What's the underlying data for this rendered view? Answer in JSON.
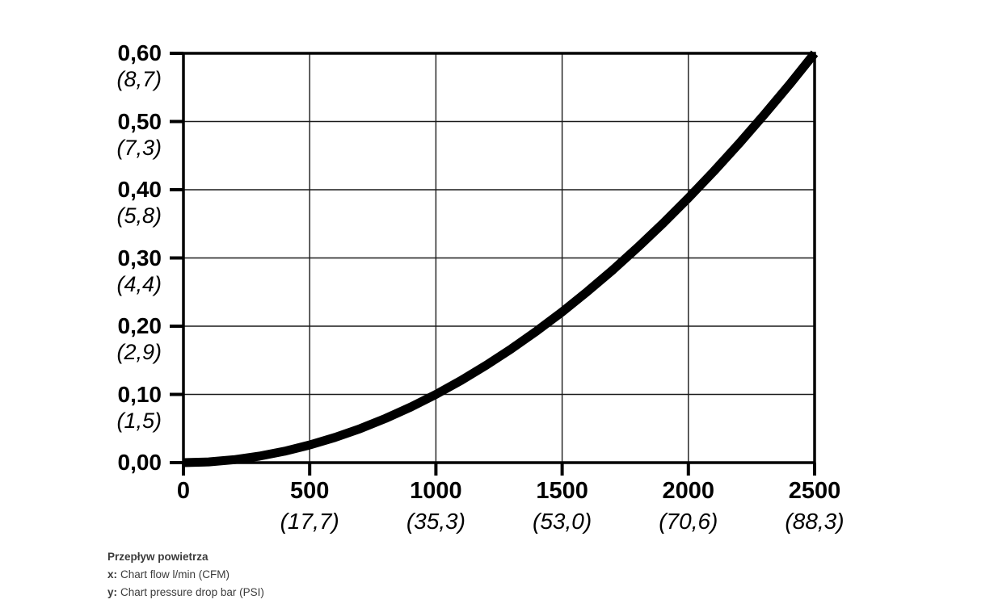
{
  "colors": {
    "background": "#ffffff",
    "axis": "#000000",
    "grid": "#1a1a1a",
    "curve": "#000000",
    "caption_text": "#3b3b3b"
  },
  "chart_data": {
    "type": "line",
    "grid": true,
    "legend": "none",
    "title": "Przepływ powietrza",
    "xlabel_prefix": "x:",
    "xlabel": "Chart flow l/min (CFM)",
    "ylabel_prefix": "y:",
    "ylabel": "Chart pressure drop bar (PSI)",
    "x_axis": {
      "range": [
        0,
        2500
      ],
      "ticks": [
        {
          "value": 0,
          "label": "0",
          "sublabel": ""
        },
        {
          "value": 500,
          "label": "500",
          "sublabel": "(17,7)"
        },
        {
          "value": 1000,
          "label": "1000",
          "sublabel": "(35,3)"
        },
        {
          "value": 1500,
          "label": "1500",
          "sublabel": "(53,0)"
        },
        {
          "value": 2000,
          "label": "2000",
          "sublabel": "(70,6)"
        },
        {
          "value": 2500,
          "label": "2500",
          "sublabel": "(88,3)"
        }
      ]
    },
    "y_axis": {
      "range": [
        0,
        0.6
      ],
      "ticks": [
        {
          "value": 0.6,
          "label": "0,60",
          "sublabel": "(8,7)"
        },
        {
          "value": 0.5,
          "label": "0,50",
          "sublabel": "(7,3)"
        },
        {
          "value": 0.4,
          "label": "0,40",
          "sublabel": "(5,8)"
        },
        {
          "value": 0.3,
          "label": "0,30",
          "sublabel": "(4,4)"
        },
        {
          "value": 0.2,
          "label": "0,20",
          "sublabel": "(2,9)"
        },
        {
          "value": 0.1,
          "label": "0,10",
          "sublabel": "(1,5)"
        },
        {
          "value": 0.0,
          "label": "0,00",
          "sublabel": ""
        }
      ]
    },
    "series": [
      {
        "points": [
          [
            0,
            0
          ],
          [
            100,
            0.0011
          ],
          [
            200,
            0.0043
          ],
          [
            300,
            0.0095
          ],
          [
            400,
            0.0167
          ],
          [
            500,
            0.0259
          ],
          [
            600,
            0.0369
          ],
          [
            700,
            0.0498
          ],
          [
            800,
            0.0647
          ],
          [
            900,
            0.0814
          ],
          [
            1000,
            0.1
          ],
          [
            1100,
            0.1205
          ],
          [
            1200,
            0.1429
          ],
          [
            1300,
            0.1671
          ],
          [
            1400,
            0.1932
          ],
          [
            1500,
            0.221
          ],
          [
            1600,
            0.2508
          ],
          [
            1700,
            0.2823
          ],
          [
            1800,
            0.3157
          ],
          [
            1900,
            0.3509
          ],
          [
            2000,
            0.3879
          ],
          [
            2100,
            0.4266
          ],
          [
            2200,
            0.4673
          ],
          [
            2300,
            0.5098
          ],
          [
            2400,
            0.554
          ],
          [
            2500,
            0.6
          ]
        ]
      }
    ]
  }
}
